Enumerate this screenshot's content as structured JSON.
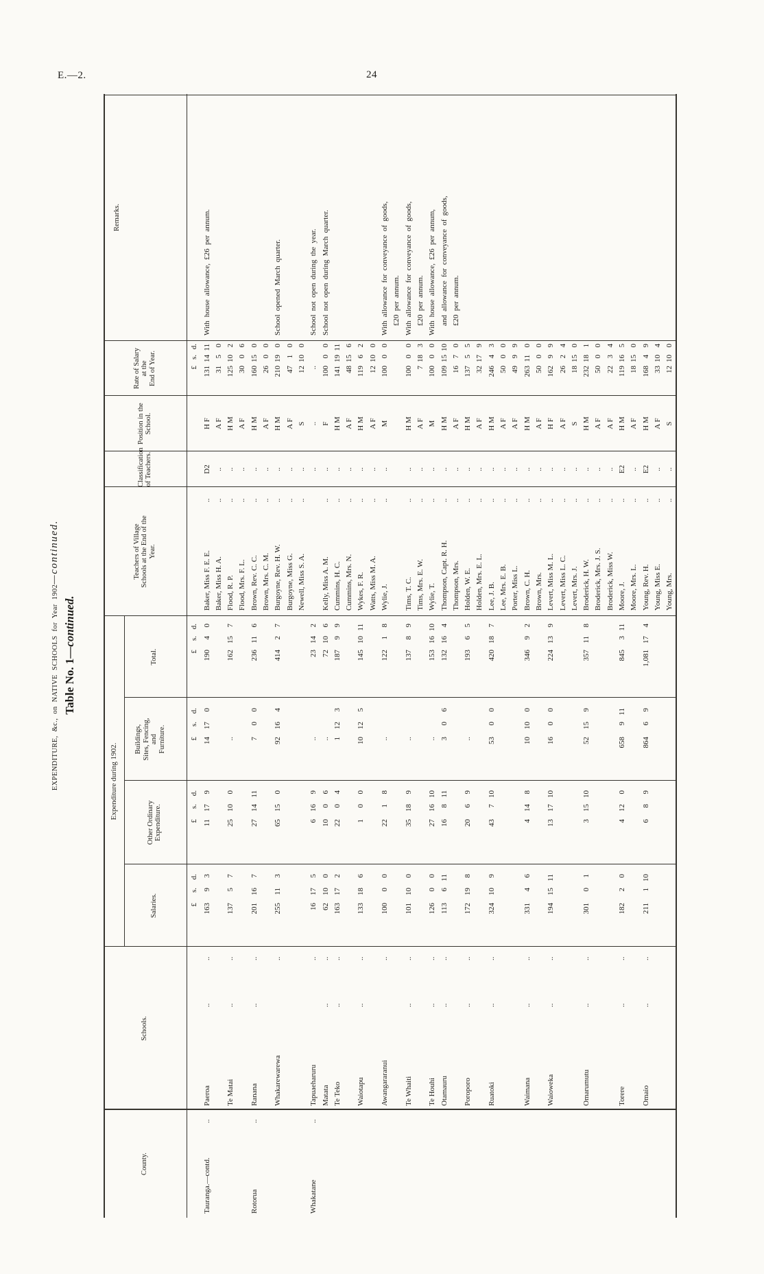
{
  "page": {
    "doc_code": "E.—2.",
    "page_number": "24"
  },
  "title": {
    "line1_main": "EXPENDITURE, &c., on NATIVE SCHOOLS for Year 1902",
    "line1_tail": "—continued.",
    "line2_main": "Table No. 1",
    "line2_tail": "—continued."
  },
  "headers": {
    "county": [
      "County."
    ],
    "schools": [
      "Schools."
    ],
    "expenditure_span": [
      "Expenditure during 1902."
    ],
    "salaries": [
      "Salaries."
    ],
    "other": [
      "Other Ordinary",
      "Expenditure."
    ],
    "buildings": [
      "Buildings,",
      "Sites, Fencing,",
      "and",
      "Furniture."
    ],
    "total": [
      "Total."
    ],
    "teachers": [
      "Teachers of Village",
      "Schools at the End of the",
      "Year."
    ],
    "classification": [
      "Classification",
      "of Teachers."
    ],
    "position": [
      "Position in the",
      "School."
    ],
    "rate": [
      "Rate of Salary",
      "at the",
      "End of Year."
    ],
    "remarks": [
      "Remarks."
    ]
  },
  "money_unit": {
    "pounds": "£",
    "shillings": "s.",
    "pence": "d."
  },
  "counties": [
    {
      "row": 1,
      "name": "Tauranga.—contd."
    },
    {
      "row": 5,
      "name": "Rotorua"
    },
    {
      "row": 10,
      "name": "Whakatane"
    }
  ],
  "schools": [
    {
      "row": 1,
      "name": "Paeroa",
      "salaries": [
        "163",
        "9",
        "3"
      ],
      "other": [
        "11",
        "17",
        "9"
      ],
      "buildings": [
        "14",
        "17",
        "0"
      ],
      "total": [
        "190",
        "4",
        "0"
      ]
    },
    {
      "row": 3,
      "name": "Te Matai",
      "salaries": [
        "137",
        "5",
        "7"
      ],
      "other": [
        "25",
        "10",
        "0"
      ],
      "buildings": null,
      "total": [
        "162",
        "15",
        "7"
      ]
    },
    {
      "row": 5,
      "name": "Ranana",
      "salaries": [
        "201",
        "16",
        "7"
      ],
      "other": [
        "27",
        "14",
        "11"
      ],
      "buildings": [
        "7",
        "0",
        "0"
      ],
      "total": [
        "236",
        "11",
        "6"
      ]
    },
    {
      "row": 7,
      "name": "Whakarewarewa",
      "salaries": [
        "255",
        "11",
        "3"
      ],
      "other": [
        "65",
        "15",
        "0"
      ],
      "buildings": [
        "92",
        "16",
        "4"
      ],
      "total": [
        "414",
        "2",
        "7"
      ]
    },
    {
      "row": 10,
      "name": "Tapuaeharuru",
      "salaries": [
        "16",
        "17",
        "5"
      ],
      "other": [
        "6",
        "16",
        "9"
      ],
      "buildings": null,
      "total": [
        "23",
        "14",
        "2"
      ]
    },
    {
      "row": 11,
      "name": "Matata",
      "salaries": [
        "62",
        "10",
        "0"
      ],
      "other": [
        "10",
        "0",
        "6"
      ],
      "buildings": null,
      "total": [
        "72",
        "10",
        "6"
      ]
    },
    {
      "row": 12,
      "name": "Te Teko",
      "salaries": [
        "163",
        "17",
        "2"
      ],
      "other": [
        "22",
        "0",
        "4"
      ],
      "buildings": [
        "1",
        "12",
        "3"
      ],
      "total": [
        "187",
        "9",
        "9"
      ]
    },
    {
      "row": 14,
      "name": "Waiotapu",
      "salaries": [
        "133",
        "18",
        "6"
      ],
      "other": [
        "1",
        "0",
        "0"
      ],
      "buildings": [
        "10",
        "12",
        "5"
      ],
      "total": [
        "145",
        "10",
        "11"
      ]
    },
    {
      "row": 16,
      "name": "Awangararanui",
      "salaries": [
        "100",
        "0",
        "0"
      ],
      "other": [
        "22",
        "1",
        "8"
      ],
      "buildings": null,
      "total": [
        "122",
        "1",
        "8"
      ]
    },
    {
      "row": 18,
      "name": "Te Whaiti",
      "salaries": [
        "101",
        "10",
        "0"
      ],
      "other": [
        "35",
        "18",
        "9"
      ],
      "buildings": null,
      "total": [
        "137",
        "8",
        "9"
      ]
    },
    {
      "row": 20,
      "name": "Te Houhi",
      "salaries": [
        "126",
        "0",
        "0"
      ],
      "other": [
        "27",
        "16",
        "10"
      ],
      "buildings": null,
      "total": [
        "153",
        "16",
        "10"
      ]
    },
    {
      "row": 21,
      "name": "Otamauru",
      "salaries": [
        "113",
        "6",
        "11"
      ],
      "other": [
        "16",
        "8",
        "11"
      ],
      "buildings": [
        "3",
        "0",
        "6"
      ],
      "total": [
        "132",
        "16",
        "4"
      ]
    },
    {
      "row": 23,
      "name": "Poroporo",
      "salaries": [
        "172",
        "19",
        "8"
      ],
      "other": [
        "20",
        "6",
        "9"
      ],
      "buildings": null,
      "total": [
        "193",
        "6",
        "5"
      ]
    },
    {
      "row": 25,
      "name": "Ruatoki",
      "salaries": [
        "324",
        "10",
        "9"
      ],
      "other": [
        "43",
        "7",
        "10"
      ],
      "buildings": [
        "53",
        "0",
        "0"
      ],
      "total": [
        "420",
        "18",
        "7"
      ]
    },
    {
      "row": 28,
      "name": "Waimana",
      "salaries": [
        "331",
        "4",
        "6"
      ],
      "other": [
        "4",
        "14",
        "8"
      ],
      "buildings": [
        "10",
        "10",
        "0"
      ],
      "total": [
        "346",
        "9",
        "2"
      ]
    },
    {
      "row": 30,
      "name": "Waioweka",
      "salaries": [
        "194",
        "15",
        "11"
      ],
      "other": [
        "13",
        "17",
        "10"
      ],
      "buildings": [
        "16",
        "0",
        "0"
      ],
      "total": [
        "224",
        "13",
        "9"
      ]
    },
    {
      "row": 33,
      "name": "Omarumutu",
      "salaries": [
        "301",
        "0",
        "1"
      ],
      "other": [
        "3",
        "15",
        "10"
      ],
      "buildings": [
        "52",
        "15",
        "9"
      ],
      "total": [
        "357",
        "11",
        "8"
      ]
    },
    {
      "row": 36,
      "name": "Torere",
      "salaries": [
        "182",
        "2",
        "0"
      ],
      "other": [
        "4",
        "12",
        "0"
      ],
      "buildings": [
        "658",
        "9",
        "11"
      ],
      "total": [
        "845",
        "3",
        "11"
      ]
    },
    {
      "row": 38,
      "name": "Omaio",
      "salaries": [
        "211",
        "1",
        "10"
      ],
      "other": [
        "6",
        "8",
        "9"
      ],
      "buildings": [
        "864",
        "6",
        "9"
      ],
      "total": [
        "1,081",
        "17",
        "4"
      ]
    }
  ],
  "teachers": [
    {
      "row": 1,
      "name": "Baker, Miss F. E. E.",
      "classification": "D2",
      "position": "H F",
      "rate": [
        "131",
        "14",
        "11"
      ]
    },
    {
      "row": 2,
      "name": "Baker, Miss H. A.",
      "classification": "..",
      "position": "A F",
      "rate": [
        "31",
        "5",
        "0"
      ]
    },
    {
      "row": 3,
      "name": "Flood, R. P.",
      "classification": "..",
      "position": "H M",
      "rate": [
        "125",
        "10",
        "2"
      ]
    },
    {
      "row": 4,
      "name": "Flood, Mrs. F. L.",
      "classification": "..",
      "position": "A F",
      "rate": [
        "30",
        "0",
        "6"
      ]
    },
    {
      "row": 5,
      "name": "Brown, Rev. C. C.",
      "classification": "..",
      "position": "H M",
      "rate": [
        "160",
        "15",
        "0"
      ]
    },
    {
      "row": 6,
      "name": "Brown, Mrs. C. M.",
      "classification": "..",
      "position": "A F",
      "rate": [
        "26",
        "0",
        "0"
      ]
    },
    {
      "row": 7,
      "name": "Burgoyne, Rev. H. W.",
      "classification": "..",
      "position": "H M",
      "rate": [
        "210",
        "19",
        "0"
      ]
    },
    {
      "row": 8,
      "name": "Burgoyne, Miss G.",
      "classification": "..",
      "position": "A F",
      "rate": [
        "47",
        "1",
        "0"
      ]
    },
    {
      "row": 9,
      "name": "Newell, Miss S. A.",
      "classification": "..",
      "position": "S",
      "rate": [
        "12",
        "10",
        "0"
      ]
    },
    {
      "row": 10,
      "name": "",
      "classification": "..",
      "position": "..",
      "rate": null
    },
    {
      "row": 11,
      "name": "Kelly, Miss A. M.",
      "classification": "..",
      "position": "F",
      "rate": [
        "100",
        "0",
        "0"
      ]
    },
    {
      "row": 12,
      "name": "Cummins, H. C.",
      "classification": "..",
      "position": "H M",
      "rate": [
        "141",
        "19",
        "11"
      ]
    },
    {
      "row": 13,
      "name": "Cummins, Mrs. N.",
      "classification": "..",
      "position": "A F",
      "rate": [
        "48",
        "15",
        "6"
      ]
    },
    {
      "row": 14,
      "name": "Wykes, F. R.",
      "classification": "..",
      "position": "H M",
      "rate": [
        "119",
        "6",
        "2"
      ]
    },
    {
      "row": 15,
      "name": "Watts, Miss M. A.",
      "classification": "..",
      "position": "A F",
      "rate": [
        "12",
        "10",
        "0"
      ]
    },
    {
      "row": 16,
      "name": "Wylie, J.",
      "classification": "..",
      "position": "M",
      "rate": [
        "100",
        "0",
        "0"
      ]
    },
    {
      "row": 18,
      "name": "Tims, T. C.",
      "classification": "..",
      "position": "H M",
      "rate": [
        "100",
        "0",
        "0"
      ]
    },
    {
      "row": 19,
      "name": "Tims, Mrs. E. W.",
      "classification": "..",
      "position": "A F",
      "rate": [
        "7",
        "18",
        "3"
      ]
    },
    {
      "row": 20,
      "name": "Wylie, T.",
      "classification": "..",
      "position": "M",
      "rate": [
        "100",
        "0",
        "0"
      ]
    },
    {
      "row": 21,
      "name": "Thompson, Capt. R. H.",
      "classification": "..",
      "position": "H M",
      "rate": [
        "109",
        "15",
        "10"
      ]
    },
    {
      "row": 22,
      "name": "Thompson, Mrs.",
      "classification": "..",
      "position": "A F",
      "rate": [
        "16",
        "7",
        "0"
      ]
    },
    {
      "row": 23,
      "name": "Holden, W. E.",
      "classification": "..",
      "position": "H M",
      "rate": [
        "137",
        "5",
        "5"
      ]
    },
    {
      "row": 24,
      "name": "Holden, Mrs. E. L.",
      "classification": "..",
      "position": "A F",
      "rate": [
        "32",
        "17",
        "9"
      ]
    },
    {
      "row": 25,
      "name": "Lee, J. B.",
      "classification": "..",
      "position": "H M",
      "rate": [
        "246",
        "4",
        "3"
      ]
    },
    {
      "row": 26,
      "name": "Lee, Mrs. E. B.",
      "classification": "..",
      "position": "A F",
      "rate": [
        "50",
        "0",
        "0"
      ]
    },
    {
      "row": 27,
      "name": "Porter, Miss L.",
      "classification": "..",
      "position": "A F",
      "rate": [
        "49",
        "9",
        "9"
      ]
    },
    {
      "row": 28,
      "name": "Brown, C. H.",
      "classification": "..",
      "position": "H M",
      "rate": [
        "263",
        "11",
        "0"
      ]
    },
    {
      "row": 29,
      "name": "Brown, Mrs.",
      "classification": "..",
      "position": "A F",
      "rate": [
        "50",
        "0",
        "0"
      ]
    },
    {
      "row": 30,
      "name": "Levert, Miss M. L.",
      "classification": "..",
      "position": "H F",
      "rate": [
        "162",
        "9",
        "9"
      ]
    },
    {
      "row": 31,
      "name": "Levert, Miss L. C.",
      "classification": "..",
      "position": "A F",
      "rate": [
        "26",
        "2",
        "4"
      ]
    },
    {
      "row": 32,
      "name": "Levert, Mrs. J.",
      "classification": "..",
      "position": "S",
      "rate": [
        "18",
        "15",
        "0"
      ]
    },
    {
      "row": 33,
      "name": "Broderick, H. W.",
      "classification": "..",
      "position": "H M",
      "rate": [
        "232",
        "18",
        "1"
      ]
    },
    {
      "row": 34,
      "name": "Broderick, Mrs. J. S.",
      "classification": "..",
      "position": "A F",
      "rate": [
        "50",
        "0",
        "0"
      ]
    },
    {
      "row": 35,
      "name": "Broderick, Miss W.",
      "classification": "..",
      "position": "A F",
      "rate": [
        "22",
        "3",
        "4"
      ]
    },
    {
      "row": 36,
      "name": "Moore, J.",
      "classification": "E2",
      "position": "H M",
      "rate": [
        "119",
        "16",
        "5"
      ]
    },
    {
      "row": 37,
      "name": "Moore, Mrs. L.",
      "classification": "..",
      "position": "A F",
      "rate": [
        "18",
        "15",
        "0"
      ]
    },
    {
      "row": 38,
      "name": "Young, Rev. H.",
      "classification": "E2",
      "position": "H M",
      "rate": [
        "168",
        "4",
        "9"
      ]
    },
    {
      "row": 39,
      "name": "Young, Miss E.",
      "classification": "..",
      "position": "A F",
      "rate": [
        "33",
        "10",
        "4"
      ]
    },
    {
      "row": 40,
      "name": "Young, Mrs.",
      "classification": "..",
      "position": "S",
      "rate": [
        "12",
        "10",
        "0"
      ]
    }
  ],
  "remarks": [
    {
      "row": 1,
      "indent": 0,
      "text": "With house allowance, £26 per annum."
    },
    {
      "row": 7,
      "indent": 0,
      "text": "School opened March quarter."
    },
    {
      "row": 10,
      "indent": 0,
      "text": "School not open during the year."
    },
    {
      "row": 11,
      "indent": 0,
      "text": "School not open during March quarter."
    },
    {
      "row": 16,
      "indent": 0,
      "text": "With allowance for conveyance of goods,"
    },
    {
      "row": 17,
      "indent": 1,
      "text": "£20 per annum."
    },
    {
      "row": 18,
      "indent": 0,
      "text": "With allowance for conveyance of goods,"
    },
    {
      "row": 19,
      "indent": 1,
      "text": "£20 per annum."
    },
    {
      "row": 20,
      "indent": 0,
      "text": "With house allowance, £26 per annum,"
    },
    {
      "row": 21,
      "indent": 1,
      "text": "and allowance for conveyance of goods,"
    },
    {
      "row": 22,
      "indent": 1,
      "text": "£20 per annum."
    }
  ]
}
